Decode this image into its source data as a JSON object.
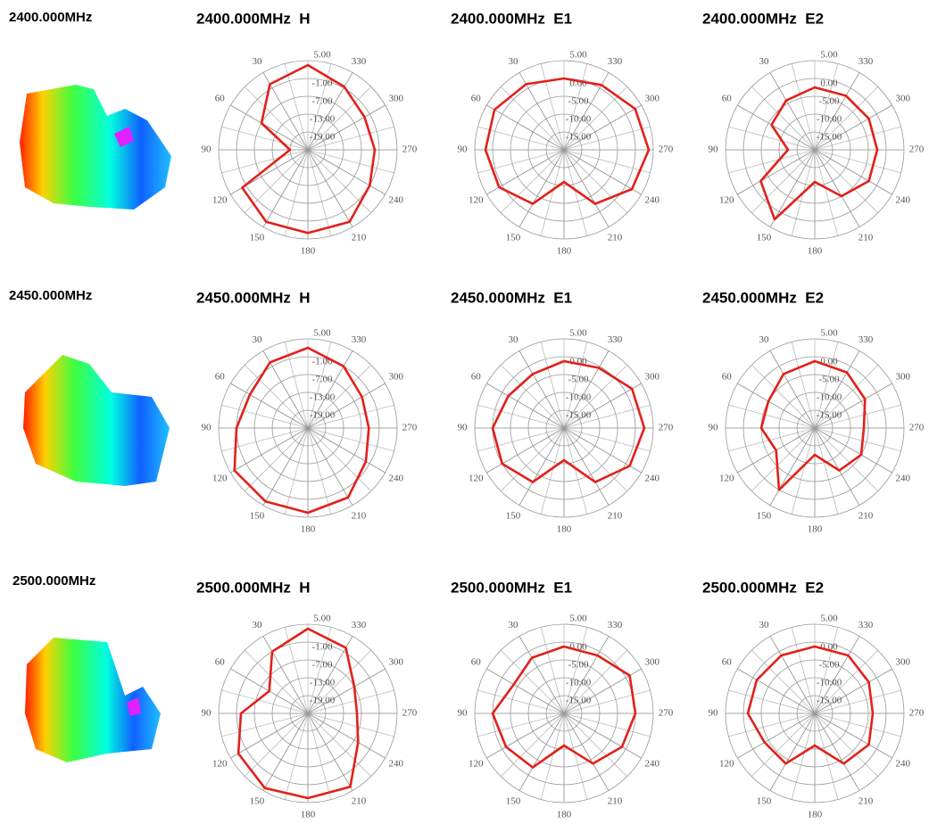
{
  "row_labels": [
    "2400.000MHz",
    "2450.000MHz",
    "2500.000MHz"
  ],
  "chart_data": [
    {
      "type": "polar",
      "title": "2400.000MHz  H",
      "theta": [
        0,
        30,
        60,
        90,
        120,
        150,
        180,
        210,
        240,
        270,
        300,
        330
      ],
      "values": [
        3.5,
        0.5,
        -7,
        -19,
        0.5,
        3,
        3,
        3,
        -1,
        -2.5,
        -3,
        -0.5
      ],
      "color": "#e3201b",
      "rlim": [
        -25,
        5
      ],
      "rticks": [
        {
          "value": 5,
          "label": "5.00"
        },
        {
          "value": -1,
          "label": "-1.00"
        },
        {
          "value": -7,
          "label": "-7.00"
        },
        {
          "value": -13,
          "label": "-13.00"
        },
        {
          "value": -19,
          "label": "-19.00"
        }
      ],
      "thetaticks": [
        30,
        60,
        90,
        120,
        150,
        180,
        210,
        240,
        270,
        300,
        330
      ]
    },
    {
      "type": "polar",
      "title": "2400.000MHz  E1",
      "theta": [
        0,
        30,
        60,
        90,
        120,
        150,
        180,
        210,
        240,
        270,
        300,
        330
      ],
      "values": [
        0,
        1.25,
        2.5,
        2,
        1,
        -2.5,
        -11,
        -2.5,
        2,
        3.75,
        3,
        1
      ],
      "color": "#e3201b",
      "rlim": [
        -20,
        5
      ],
      "rticks": [
        {
          "value": 5,
          "label": "5.00"
        },
        {
          "value": 0,
          "label": "0.00"
        },
        {
          "value": -5,
          "label": "-5.00"
        },
        {
          "value": -10,
          "label": "-10.00"
        },
        {
          "value": -15,
          "label": "-15.00"
        }
      ],
      "thetaticks": [
        30,
        60,
        90,
        120,
        150,
        180,
        210,
        240,
        270,
        300,
        330
      ]
    },
    {
      "type": "polar",
      "title": "2400.000MHz  E2",
      "theta": [
        0,
        30,
        60,
        90,
        120,
        150,
        180,
        210,
        240,
        270,
        300,
        330
      ],
      "values": [
        -2.5,
        -4,
        -6,
        -12.5,
        -2.5,
        2.5,
        -11,
        -5,
        -2.5,
        -2.5,
        -2.5,
        -2.5
      ],
      "color": "#e3201b",
      "rlim": [
        -20,
        5
      ],
      "rticks": [
        {
          "value": 5,
          "label": "5.00"
        },
        {
          "value": 0,
          "label": "0.00"
        },
        {
          "value": -5,
          "label": "-5.00"
        },
        {
          "value": -10,
          "label": "-10.00"
        },
        {
          "value": -15,
          "label": "-15.00"
        }
      ],
      "thetaticks": [
        30,
        60,
        90,
        120,
        150,
        180,
        210,
        240,
        270,
        300,
        330
      ]
    },
    {
      "type": "polar",
      "title": "2450.000MHz  H",
      "theta": [
        0,
        30,
        60,
        90,
        120,
        150,
        180,
        210,
        240,
        270,
        300,
        330
      ],
      "values": [
        2,
        0.5,
        -2.5,
        -1,
        3.5,
        3.5,
        3.5,
        2,
        -2.5,
        -4.5,
        -4,
        -1
      ],
      "color": "#e3201b",
      "rlim": [
        -25,
        5
      ],
      "rticks": [
        {
          "value": 5,
          "label": "5.00"
        },
        {
          "value": -1,
          "label": "-1.00"
        },
        {
          "value": -7,
          "label": "-7.00"
        },
        {
          "value": -13,
          "label": "-13.00"
        },
        {
          "value": -19,
          "label": "-19.00"
        }
      ],
      "thetaticks": [
        30,
        60,
        90,
        120,
        150,
        180,
        210,
        240,
        270,
        300,
        330
      ]
    },
    {
      "type": "polar",
      "title": "2450.000MHz  E1",
      "theta": [
        0,
        30,
        60,
        90,
        120,
        150,
        180,
        210,
        240,
        270,
        300,
        330
      ],
      "values": [
        -1.25,
        -2.5,
        -2,
        0,
        0,
        -2.5,
        -11,
        -2.5,
        1.25,
        2.5,
        2,
        -0.5
      ],
      "color": "#e3201b",
      "rlim": [
        -20,
        5
      ],
      "rticks": [
        {
          "value": 5,
          "label": "5.00"
        },
        {
          "value": 0,
          "label": "0.00"
        },
        {
          "value": -5,
          "label": "-5.00"
        },
        {
          "value": -10,
          "label": "-10.00"
        },
        {
          "value": -15,
          "label": "-15.00"
        }
      ],
      "thetaticks": [
        30,
        60,
        90,
        120,
        150,
        180,
        210,
        240,
        270,
        300,
        330
      ]
    },
    {
      "type": "polar",
      "title": "2450.000MHz  E2",
      "theta": [
        0,
        30,
        60,
        90,
        120,
        150,
        180,
        210,
        240,
        270,
        300,
        330
      ],
      "values": [
        -1.25,
        -2.5,
        -5,
        -5,
        -7.5,
        0,
        -12.5,
        -6.25,
        -5,
        -6.25,
        -3.75,
        -2
      ],
      "color": "#e3201b",
      "rlim": [
        -20,
        5
      ],
      "rticks": [
        {
          "value": 5,
          "label": "5.00"
        },
        {
          "value": 0,
          "label": "0.00"
        },
        {
          "value": -5,
          "label": "-5.00"
        },
        {
          "value": -10,
          "label": "-10.00"
        },
        {
          "value": -15,
          "label": "-15.00"
        }
      ],
      "thetaticks": [
        30,
        60,
        90,
        120,
        150,
        180,
        210,
        240,
        270,
        300,
        330
      ]
    },
    {
      "type": "polar",
      "title": "2500.000MHz  H",
      "theta": [
        0,
        30,
        60,
        90,
        120,
        150,
        180,
        210,
        240,
        270,
        300,
        330
      ],
      "values": [
        3.5,
        -1,
        -10,
        -2.5,
        2,
        4,
        3.5,
        3.5,
        -5.5,
        -8.5,
        -7,
        0.5
      ],
      "color": "#e3201b",
      "rlim": [
        -25,
        5
      ],
      "rticks": [
        {
          "value": 5,
          "label": "5.00"
        },
        {
          "value": -1,
          "label": "-1.00"
        },
        {
          "value": -7,
          "label": "-7.00"
        },
        {
          "value": -13,
          "label": "-13.00"
        },
        {
          "value": -19,
          "label": "-19.00"
        }
      ],
      "thetaticks": [
        30,
        60,
        90,
        120,
        150,
        180,
        210,
        240,
        270,
        300,
        330
      ]
    },
    {
      "type": "polar",
      "title": "2500.000MHz  E1",
      "theta": [
        0,
        30,
        60,
        90,
        120,
        150,
        180,
        210,
        240,
        270,
        300,
        330
      ],
      "values": [
        -1.25,
        -2,
        -3.75,
        0,
        -1.25,
        -2.5,
        -11,
        -3.75,
        -1.25,
        0,
        1.25,
        -1.25
      ],
      "color": "#e3201b",
      "rlim": [
        -20,
        5
      ],
      "rticks": [
        {
          "value": 5,
          "label": "5.00"
        },
        {
          "value": 0,
          "label": "0.00"
        },
        {
          "value": -5,
          "label": "-5.00"
        },
        {
          "value": -10,
          "label": "-10.00"
        },
        {
          "value": -15,
          "label": "-15.00"
        }
      ],
      "thetaticks": [
        30,
        60,
        90,
        120,
        150,
        180,
        210,
        240,
        270,
        300,
        330
      ]
    },
    {
      "type": "polar",
      "title": "2500.000MHz  E2",
      "theta": [
        0,
        30,
        60,
        90,
        120,
        150,
        180,
        210,
        240,
        270,
        300,
        330
      ],
      "values": [
        -1.25,
        -1.25,
        -1.25,
        -1.25,
        -3.75,
        -3.75,
        -11,
        -3.75,
        -2.5,
        -3.75,
        -2.5,
        -1.25
      ],
      "color": "#e3201b",
      "rlim": [
        -20,
        5
      ],
      "rticks": [
        {
          "value": 5,
          "label": "5.00"
        },
        {
          "value": 0,
          "label": "0.00"
        },
        {
          "value": -5,
          "label": "-5.00"
        },
        {
          "value": -10,
          "label": "-10.00"
        },
        {
          "value": -15,
          "label": "-15.00"
        }
      ],
      "thetaticks": [
        30,
        60,
        90,
        120,
        150,
        180,
        210,
        240,
        270,
        300,
        330
      ]
    }
  ]
}
